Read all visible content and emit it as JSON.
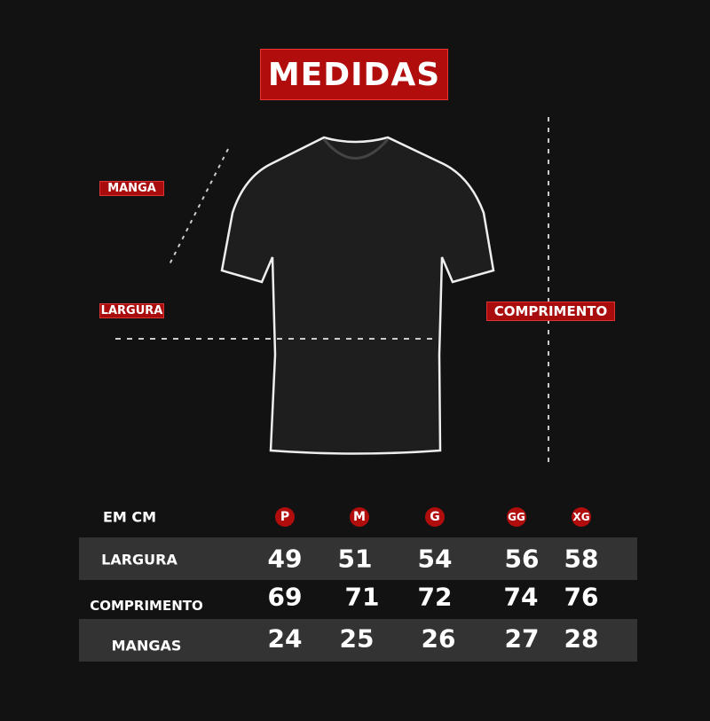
{
  "title": "MEDIDAS",
  "labels": {
    "manga": "MANGA",
    "largura": "LARGURA",
    "comprimento": "COMPRIMENTO"
  },
  "table": {
    "unit_label": "EM CM",
    "sizes": [
      "P",
      "M",
      "G",
      "GG",
      "XG"
    ],
    "rows": [
      {
        "label": "LARGURA",
        "values": [
          "49",
          "51",
          "54",
          "56",
          "58"
        ]
      },
      {
        "label": "COMPRIMENTO",
        "values": [
          "69",
          "71",
          "72",
          "74",
          "76"
        ]
      },
      {
        "label": "MANGAS",
        "values": [
          "24",
          "25",
          "26",
          "27",
          "28"
        ]
      }
    ]
  },
  "colors": {
    "accent": "#b10d0d",
    "background": "#121212",
    "band": "#333333"
  }
}
